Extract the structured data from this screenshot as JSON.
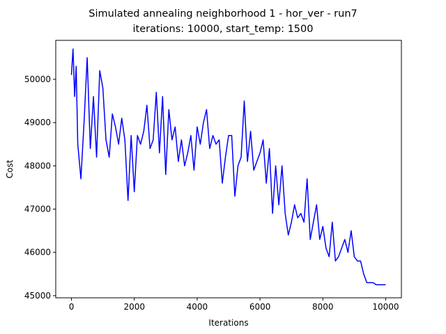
{
  "chart_data": {
    "type": "line",
    "title": "Simulated annealing neighborhood 1 - hor_ver - run7",
    "subtitle": "iterations: 10000, start_temp: 1500",
    "xlabel": "Iterations",
    "ylabel": "Cost",
    "xlim": [
      -500,
      10500
    ],
    "ylim": [
      44950,
      50900
    ],
    "xticks": [
      0,
      2000,
      4000,
      6000,
      8000,
      10000
    ],
    "yticks": [
      45000,
      46000,
      47000,
      48000,
      49000,
      50000
    ],
    "grid": false,
    "legend": "none",
    "series": [
      {
        "color": "#0000ff",
        "x": [
          0,
          50,
          100,
          150,
          200,
          300,
          400,
          500,
          600,
          700,
          800,
          900,
          1000,
          1100,
          1200,
          1300,
          1400,
          1500,
          1600,
          1700,
          1800,
          1900,
          2000,
          2100,
          2200,
          2300,
          2400,
          2500,
          2600,
          2700,
          2800,
          2900,
          3000,
          3100,
          3200,
          3300,
          3400,
          3500,
          3600,
          3700,
          3800,
          3900,
          4000,
          4100,
          4200,
          4300,
          4400,
          4500,
          4600,
          4700,
          4800,
          4900,
          5000,
          5100,
          5200,
          5300,
          5400,
          5500,
          5600,
          5700,
          5800,
          5900,
          6000,
          6100,
          6200,
          6300,
          6400,
          6500,
          6600,
          6700,
          6800,
          6900,
          7000,
          7100,
          7200,
          7300,
          7400,
          7500,
          7600,
          7700,
          7800,
          7900,
          8000,
          8100,
          8200,
          8300,
          8400,
          8500,
          8600,
          8700,
          8800,
          8900,
          9000,
          9100,
          9200,
          9300,
          9400,
          9500,
          9600,
          9700,
          9800,
          9900,
          10000
        ],
        "y": [
          50100,
          50700,
          49600,
          50300,
          48500,
          47700,
          49000,
          50500,
          48400,
          49600,
          48200,
          50200,
          49800,
          48600,
          48200,
          49200,
          48900,
          48500,
          49100,
          48600,
          47200,
          48700,
          47400,
          48700,
          48500,
          48800,
          49400,
          48400,
          48600,
          49700,
          48300,
          49600,
          47800,
          49300,
          48600,
          48900,
          48100,
          48600,
          48000,
          48300,
          48700,
          47900,
          48900,
          48500,
          49000,
          49300,
          48400,
          48700,
          48500,
          48600,
          47600,
          48200,
          48700,
          48700,
          47300,
          48000,
          48200,
          49500,
          48100,
          48800,
          47900,
          48100,
          48300,
          48600,
          47600,
          48400,
          46900,
          48000,
          47100,
          48000,
          46900,
          46400,
          46700,
          47100,
          46800,
          46900,
          46700,
          47700,
          46300,
          46700,
          47100,
          46300,
          46600,
          46100,
          45900,
          46700,
          45800,
          45900,
          46100,
          46300,
          46000,
          46500,
          45900,
          45800,
          45800,
          45500,
          45300,
          45300,
          45300,
          45250,
          45250,
          45250,
          45250
        ]
      }
    ]
  }
}
